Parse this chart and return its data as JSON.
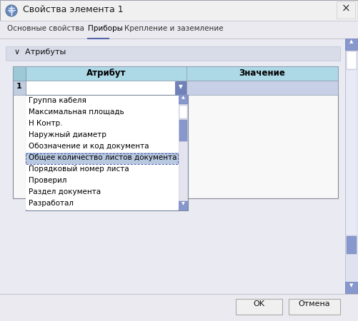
{
  "title": "Свойства элемента 1",
  "tab_basic": "Основные свойства",
  "tab_devices": "Приборы",
  "tab_mount": "Крепление и заземление",
  "section_label": "∨  Атрибуты",
  "col_attr": "Атрибут",
  "col_val": "Значение",
  "row_num": "1",
  "dropdown_items": [
    "Группа кабеля",
    "Максимальная площадь",
    "Н Контр.",
    "Наружный диаметр",
    "Обозначение и код документа",
    "Общее количество листов документа",
    "Порядковый номер листа",
    "Проверил",
    "Раздел документа",
    "Разработал"
  ],
  "selected_item": "Общее количество листов документа",
  "btn_ok": "OK",
  "btn_cancel": "Отмена",
  "bg_outer": "#e8e8f0",
  "bg_dialog": "#f0f0f5",
  "bg_content": "#eeeef5",
  "section_bg": "#d8dce8",
  "table_header_bg": "#add8e6",
  "table_row1_bg": "#c8d4e8",
  "table_body_bg": "#f0f0f0",
  "dropdown_bg": "#ffffff",
  "dropdown_selected_bg": "#b8c8e8",
  "scrollbar_thumb": "#7080b8",
  "scrollbar_track": "#e0e0e0",
  "border_color": "#999999",
  "border_dark": "#666688",
  "text_color": "#000000",
  "btn_bg": "#f0f0f0",
  "right_scrollbar_bg": "#8898cc",
  "right_scrollbar_track": "#e8eaf8"
}
